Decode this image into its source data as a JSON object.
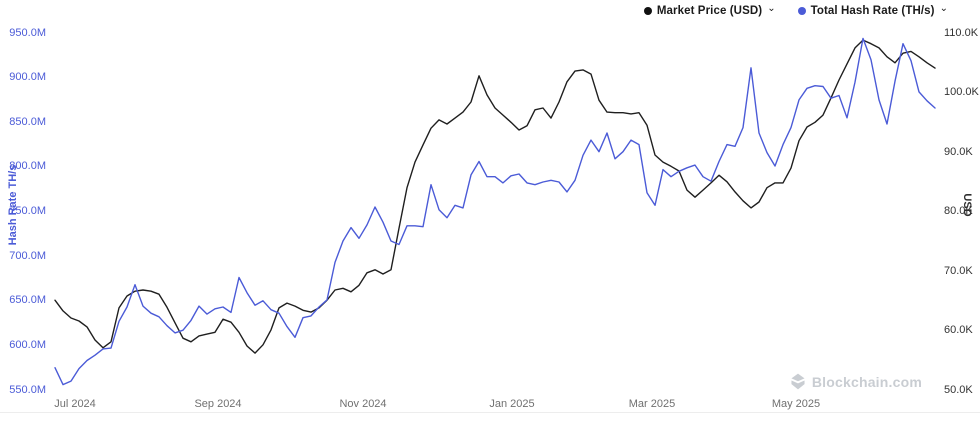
{
  "legend": {
    "dropdown_char": "⌄",
    "items": [
      {
        "label": "Market Price (USD)",
        "color": "#111111"
      },
      {
        "label": "Total Hash Rate (TH/s)",
        "color": "#4b5bd7"
      }
    ]
  },
  "watermark": {
    "text": "Blockchain.com"
  },
  "chart_data": {
    "type": "line",
    "title": "",
    "grid": "off",
    "legend_position": "top-right",
    "x_axis": {
      "tick_labels": [
        "Jul 2024",
        "Sep 2024",
        "Nov 2024",
        "Jan 2025",
        "Mar 2025",
        "May 2025"
      ],
      "range": [
        "Jun 2024",
        "Jun 2025"
      ]
    },
    "left_axis": {
      "title": "Hash Rate TH/s",
      "min": 550,
      "max": 950,
      "unit": "M",
      "tick_values": [
        950,
        900,
        850,
        800,
        750,
        700,
        650,
        600,
        550
      ],
      "tick_labels": [
        "950.0M",
        "900.0M",
        "850.0M",
        "800.0M",
        "750.0M",
        "700.0M",
        "650.0M",
        "600.0M",
        "550.0M"
      ],
      "color": "#4b5bd7"
    },
    "right_axis": {
      "title": "USD",
      "min": 50,
      "max": 110,
      "unit": "K",
      "tick_values": [
        110,
        100,
        90,
        80,
        70,
        60,
        50
      ],
      "tick_labels": [
        "110.0K",
        "100.0K",
        "90.0K",
        "80.0K",
        "70.0K",
        "60.0K",
        "50.0K"
      ],
      "color": "#2e2e2e"
    },
    "series": [
      {
        "name": "Market Price (USD)",
        "axis": "right",
        "unit": "K USD",
        "color": "#1f1f1f",
        "dom_name": "market-price-line",
        "values": [
          65.1,
          63.3,
          62.1,
          61.6,
          60.6,
          58.4,
          57.1,
          58.1,
          63.8,
          65.8,
          66.6,
          66.8,
          66.6,
          66.1,
          63.9,
          61.3,
          58.7,
          58.1,
          59.1,
          59.4,
          59.7,
          61.9,
          61.4,
          59.7,
          57.4,
          56.2,
          57.6,
          60.1,
          63.8,
          64.6,
          64.1,
          63.4,
          63.1,
          63.8,
          65.1,
          66.8,
          67.1,
          66.5,
          67.6,
          69.7,
          70.2,
          69.5,
          70.2,
          77.2,
          84.0,
          88.3,
          91.2,
          94.0,
          95.4,
          94.7,
          95.7,
          96.7,
          98.4,
          102.8,
          99.6,
          97.4,
          96.2,
          95.0,
          93.7,
          94.4,
          97.1,
          97.4,
          95.7,
          98.4,
          101.8,
          103.6,
          103.8,
          103.1,
          98.7,
          96.7,
          96.6,
          96.6,
          96.4,
          96.6,
          94.5,
          89.5,
          88.3,
          87.6,
          86.8,
          83.6,
          82.4,
          83.6,
          84.8,
          86.1,
          85.0,
          83.3,
          81.8,
          80.6,
          81.6,
          84.0,
          84.8,
          84.8,
          87.3,
          91.9,
          94.2,
          95.0,
          96.2,
          99.1,
          102.1,
          104.8,
          107.5,
          108.8,
          108.2,
          107.5,
          106.0,
          105.0,
          106.6,
          106.9,
          106.0,
          105.0,
          104.1
        ]
      },
      {
        "name": "Total Hash Rate (TH/s)",
        "axis": "left",
        "unit": "M TH/s",
        "color": "#4b5bd7",
        "dom_name": "hash-rate-line",
        "values": [
          575,
          556,
          560,
          574,
          583,
          589,
          596,
          597,
          627,
          643,
          668,
          644,
          636,
          632,
          622,
          614,
          617,
          628,
          644,
          635,
          641,
          643,
          637,
          676,
          659,
          645,
          650,
          640,
          636,
          621,
          609,
          631,
          633,
          643,
          651,
          693,
          717,
          732,
          720,
          735,
          755,
          738,
          717,
          713,
          734,
          734,
          733,
          780,
          752,
          743,
          757,
          754,
          791,
          806,
          789,
          789,
          782,
          790,
          792,
          782,
          780,
          783,
          785,
          783,
          772,
          785,
          813,
          830,
          817,
          838,
          809,
          817,
          830,
          825,
          771,
          757,
          797,
          789,
          795,
          799,
          802,
          789,
          784,
          806,
          825,
          823,
          844,
          911,
          838,
          816,
          801,
          825,
          844,
          875,
          888,
          891,
          890,
          877,
          880,
          855,
          895,
          944,
          920,
          875,
          848,
          896,
          938,
          919,
          884,
          874,
          866
        ]
      }
    ]
  }
}
